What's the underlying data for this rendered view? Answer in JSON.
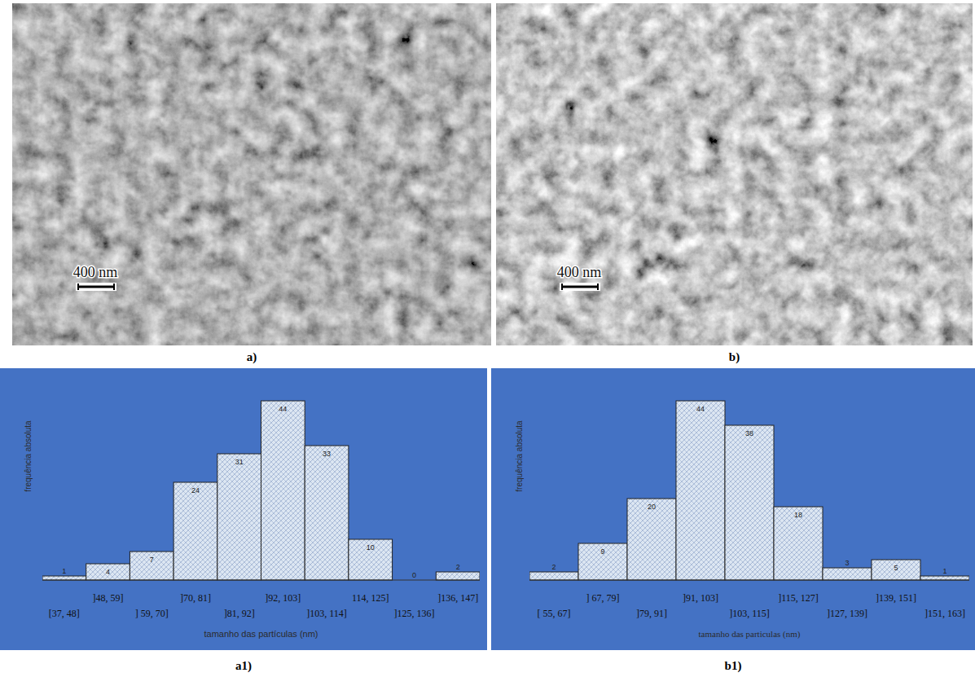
{
  "images": [
    {
      "label": "a)",
      "scale_bar": "400 nm"
    },
    {
      "label": "b)",
      "scale_bar": "400 nm"
    }
  ],
  "chart_labels": [
    "a1)",
    "b1)"
  ],
  "chart_data": [
    {
      "type": "histogram",
      "ylabel": "frequência absoluta",
      "xlabel": "tamanho das partículas (nm)",
      "bins": [
        37,
        48,
        59,
        70,
        81,
        92,
        103,
        114,
        125,
        136,
        147
      ],
      "categories": [
        "[37, 48]",
        "]48, 59]",
        "] 59, 70]",
        "]70, 81]",
        "]81, 92]",
        "]92, 103]",
        "]103, 114]",
        "114, 125]",
        "]125, 136]",
        "]136, 147]"
      ],
      "values": [
        1,
        4,
        7,
        24,
        31,
        44,
        33,
        10,
        0,
        2
      ],
      "color": "#dce6f2",
      "xlim": [
        37,
        147
      ],
      "ylim": [
        0,
        50
      ],
      "data_labels": true,
      "tick_labels": "x",
      "grid": false
    },
    {
      "type": "histogram",
      "ylabel": "frequência absoluta",
      "xlabel": "tamanho das particulas (nm)",
      "bins": [
        55,
        67,
        79,
        91,
        103,
        115,
        127,
        139,
        151,
        163
      ],
      "categories": [
        "[ 55, 67]",
        "] 67, 79]",
        "]79, 91]",
        "]91, 103]",
        "]103, 115]",
        "]115, 127]",
        "]127, 139]",
        "]139, 151]",
        "]151, 163]"
      ],
      "values": [
        2,
        9,
        20,
        44,
        38,
        18,
        3,
        5,
        1
      ],
      "color": "#dce6f2",
      "xlim": [
        55,
        163
      ],
      "ylim": [
        0,
        50
      ],
      "data_labels": true,
      "tick_labels": "x",
      "grid": false
    }
  ]
}
